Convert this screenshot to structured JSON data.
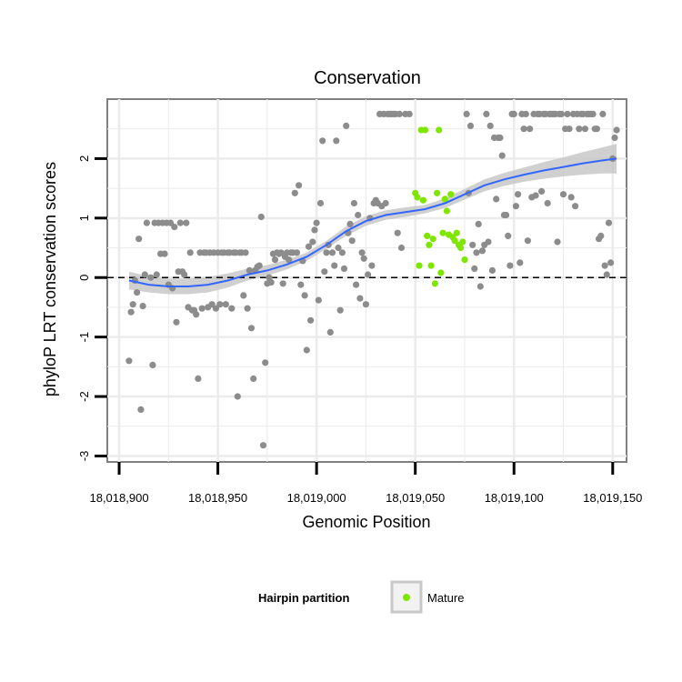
{
  "chart_data": {
    "type": "scatter",
    "title": "Conservation",
    "xlabel": "Genomic Position",
    "ylabel": "phyloP LRT conservation scores",
    "xlim": [
      18018894,
      18019157
    ],
    "ylim": [
      -3.1,
      3.0
    ],
    "x_ticks": [
      {
        "value": 18018900,
        "label": "18,018,900"
      },
      {
        "value": 18018950,
        "label": "18,018,950"
      },
      {
        "value": 18019000,
        "label": "18,019,000"
      },
      {
        "value": 18019050,
        "label": "18,019,050"
      },
      {
        "value": 18019100,
        "label": "18,019,100"
      },
      {
        "value": 18019150,
        "label": "18,019,150"
      }
    ],
    "y_ticks": [
      {
        "value": -3,
        "label": "-3"
      },
      {
        "value": -2,
        "label": "-2"
      },
      {
        "value": -1,
        "label": "-1"
      },
      {
        "value": 0,
        "label": "0"
      },
      {
        "value": 1,
        "label": "1"
      },
      {
        "value": 2,
        "label": "2"
      }
    ],
    "grid": true,
    "reference_line": {
      "y": 0,
      "style": "dashed",
      "color": "#000000"
    },
    "colors": {
      "other_points": "#8c8c8c",
      "mature_points": "#7fe600",
      "smooth_line": "#3366ff",
      "confidence_band": "#c8c8c8",
      "grid": "#ebebeb",
      "panel_border": "#808080"
    },
    "series": [
      {
        "name": "Other",
        "color": "#8c8c8c",
        "points": [
          [
            18018905,
            -1.4
          ],
          [
            18018906,
            -0.58
          ],
          [
            18018907,
            -0.45
          ],
          [
            18018908,
            -0.05
          ],
          [
            18018909,
            -0.25
          ],
          [
            18018910,
            0.65
          ],
          [
            18018911,
            -2.22
          ],
          [
            18018912,
            -0.48
          ],
          [
            18018913,
            0.05
          ],
          [
            18018914,
            0.92
          ],
          [
            18018916,
            0.0
          ],
          [
            18018917,
            -1.47
          ],
          [
            18018918,
            0.92
          ],
          [
            18018919,
            0.05
          ],
          [
            18018920,
            0.92
          ],
          [
            18018921,
            0.4
          ],
          [
            18018922,
            0.92
          ],
          [
            18018923,
            0.4
          ],
          [
            18018924,
            0.92
          ],
          [
            18018925,
            -0.12
          ],
          [
            18018926,
            0.92
          ],
          [
            18018927,
            -0.18
          ],
          [
            18018928,
            0.85
          ],
          [
            18018929,
            -0.75
          ],
          [
            18018930,
            0.1
          ],
          [
            18018931,
            0.92
          ],
          [
            18018932,
            0.1
          ],
          [
            18018933,
            0.05
          ],
          [
            18018934,
            0.92
          ],
          [
            18018935,
            -0.5
          ],
          [
            18018936,
            0.42
          ],
          [
            18018937,
            -0.55
          ],
          [
            18018938,
            -0.55
          ],
          [
            18018939,
            -0.62
          ],
          [
            18018940,
            -1.7
          ],
          [
            18018941,
            0.42
          ],
          [
            18018942,
            -0.52
          ],
          [
            18018943,
            0.42
          ],
          [
            18018944,
            0.42
          ],
          [
            18018945,
            -0.5
          ],
          [
            18018946,
            0.42
          ],
          [
            18018947,
            -0.45
          ],
          [
            18018948,
            0.42
          ],
          [
            18018949,
            -0.52
          ],
          [
            18018950,
            0.42
          ],
          [
            18018951,
            -0.45
          ],
          [
            18018952,
            0.42
          ],
          [
            18018953,
            0.42
          ],
          [
            18018954,
            -0.45
          ],
          [
            18018955,
            0.42
          ],
          [
            18018956,
            0.42
          ],
          [
            18018957,
            -0.52
          ],
          [
            18018958,
            0.42
          ],
          [
            18018959,
            0.42
          ],
          [
            18018960,
            -2.0
          ],
          [
            18018961,
            0.42
          ],
          [
            18018962,
            0.42
          ],
          [
            18018963,
            -0.3
          ],
          [
            18018964,
            0.42
          ],
          [
            18018965,
            -0.52
          ],
          [
            18018966,
            0.12
          ],
          [
            18018967,
            -0.85
          ],
          [
            18018968,
            -1.7
          ],
          [
            18018969,
            0.12
          ],
          [
            18018970,
            0.18
          ],
          [
            18018971,
            0.2
          ],
          [
            18018972,
            1.02
          ],
          [
            18018973,
            -2.82
          ],
          [
            18018974,
            -1.43
          ],
          [
            18018975,
            -0.1
          ],
          [
            18018976,
            0.0
          ],
          [
            18018977,
            -0.08
          ],
          [
            18018978,
            0.4
          ],
          [
            18018979,
            0.3
          ],
          [
            18018980,
            0.42
          ],
          [
            18018981,
            0.4
          ],
          [
            18018982,
            0.42
          ],
          [
            18018983,
            -0.1
          ],
          [
            18018984,
            0.35
          ],
          [
            18018985,
            0.42
          ],
          [
            18018986,
            0.3
          ],
          [
            18018987,
            0.42
          ],
          [
            18018988,
            0.42
          ],
          [
            18018989,
            1.42
          ],
          [
            18018990,
            0.42
          ],
          [
            18018991,
            1.55
          ],
          [
            18018992,
            -0.12
          ],
          [
            18018993,
            0.28
          ],
          [
            18018994,
            -0.3
          ],
          [
            18018995,
            -1.22
          ],
          [
            18018996,
            0.52
          ],
          [
            18018997,
            -0.72
          ],
          [
            18018998,
            0.6
          ],
          [
            18018999,
            0.8
          ],
          [
            18019000,
            0.92
          ],
          [
            18019001,
            -0.38
          ],
          [
            18019002,
            1.25
          ],
          [
            18019003,
            2.3
          ],
          [
            18019004,
            0.1
          ],
          [
            18019005,
            0.42
          ],
          [
            18019006,
            0.55
          ],
          [
            18019007,
            -0.92
          ],
          [
            18019008,
            0.42
          ],
          [
            18019009,
            0.2
          ],
          [
            18019010,
            2.3
          ],
          [
            18019011,
            0.5
          ],
          [
            18019012,
            -0.55
          ],
          [
            18019013,
            0.42
          ],
          [
            18019014,
            0.15
          ],
          [
            18019015,
            2.55
          ],
          [
            18019016,
            0.75
          ],
          [
            18019017,
            0.9
          ],
          [
            18019018,
            0.62
          ],
          [
            18019019,
            1.25
          ],
          [
            18019020,
            -0.12
          ],
          [
            18019021,
            1.05
          ],
          [
            18019022,
            -0.35
          ],
          [
            18019023,
            0.42
          ],
          [
            18019024,
            0.32
          ],
          [
            18019025,
            -0.45
          ],
          [
            18019026,
            0.05
          ],
          [
            18019027,
            1.0
          ],
          [
            18019028,
            0.2
          ],
          [
            18019029,
            1.25
          ],
          [
            18019030,
            1.3
          ],
          [
            18019031,
            1.25
          ],
          [
            18019032,
            2.75
          ],
          [
            18019033,
            1.2
          ],
          [
            18019034,
            2.75
          ],
          [
            18019035,
            1.25
          ],
          [
            18019036,
            2.75
          ],
          [
            18019037,
            2.75
          ],
          [
            18019038,
            2.75
          ],
          [
            18019039,
            2.75
          ],
          [
            18019040,
            2.75
          ],
          [
            18019041,
            0.75
          ],
          [
            18019042,
            2.75
          ],
          [
            18019043,
            0.5
          ],
          [
            18019045,
            2.75
          ],
          [
            18019047,
            2.75
          ],
          [
            18019076,
            2.75
          ],
          [
            18019077,
            1.42
          ],
          [
            18019078,
            2.55
          ],
          [
            18019079,
            0.55
          ],
          [
            18019080,
            0.15
          ],
          [
            18019081,
            0.42
          ],
          [
            18019082,
            0.9
          ],
          [
            18019083,
            -0.15
          ],
          [
            18019084,
            0.45
          ],
          [
            18019085,
            0.55
          ],
          [
            18019086,
            2.75
          ],
          [
            18019087,
            0.6
          ],
          [
            18019088,
            2.55
          ],
          [
            18019089,
            0.12
          ],
          [
            18019090,
            2.35
          ],
          [
            18019091,
            1.32
          ],
          [
            18019092,
            2.35
          ],
          [
            18019093,
            2.35
          ],
          [
            18019094,
            2.05
          ],
          [
            18019095,
            1.05
          ],
          [
            18019096,
            1.05
          ],
          [
            18019097,
            0.7
          ],
          [
            18019098,
            0.2
          ],
          [
            18019099,
            2.75
          ],
          [
            18019100,
            2.75
          ],
          [
            18019101,
            1.2
          ],
          [
            18019102,
            1.4
          ],
          [
            18019103,
            0.25
          ],
          [
            18019104,
            2.75
          ],
          [
            18019105,
            2.5
          ],
          [
            18019106,
            2.75
          ],
          [
            18019107,
            0.62
          ],
          [
            18019108,
            2.5
          ],
          [
            18019109,
            1.35
          ],
          [
            18019110,
            2.75
          ],
          [
            18019111,
            1.38
          ],
          [
            18019112,
            2.75
          ],
          [
            18019113,
            2.75
          ],
          [
            18019114,
            1.45
          ],
          [
            18019115,
            2.75
          ],
          [
            18019116,
            2.75
          ],
          [
            18019117,
            1.25
          ],
          [
            18019118,
            2.75
          ],
          [
            18019119,
            2.75
          ],
          [
            18019120,
            2.75
          ],
          [
            18019121,
            2.75
          ],
          [
            18019122,
            0.6
          ],
          [
            18019123,
            2.75
          ],
          [
            18019124,
            2.75
          ],
          [
            18019125,
            1.4
          ],
          [
            18019126,
            2.5
          ],
          [
            18019127,
            2.75
          ],
          [
            18019128,
            2.5
          ],
          [
            18019129,
            1.35
          ],
          [
            18019130,
            2.75
          ],
          [
            18019131,
            1.2
          ],
          [
            18019132,
            2.75
          ],
          [
            18019133,
            2.5
          ],
          [
            18019134,
            2.75
          ],
          [
            18019135,
            2.75
          ],
          [
            18019136,
            2.5
          ],
          [
            18019137,
            2.75
          ],
          [
            18019138,
            2.75
          ],
          [
            18019139,
            2.75
          ],
          [
            18019140,
            2.75
          ],
          [
            18019141,
            2.5
          ],
          [
            18019142,
            2.5
          ],
          [
            18019143,
            0.65
          ],
          [
            18019144,
            0.7
          ],
          [
            18019145,
            2.75
          ],
          [
            18019146,
            0.2
          ],
          [
            18019147,
            0.05
          ],
          [
            18019148,
            0.92
          ],
          [
            18019149,
            0.25
          ],
          [
            18019150,
            2.0
          ],
          [
            18019151,
            2.35
          ],
          [
            18019152,
            2.48
          ]
        ]
      },
      {
        "name": "Mature",
        "color": "#7fe600",
        "points": [
          [
            18019050,
            1.42
          ],
          [
            18019051,
            1.35
          ],
          [
            18019052,
            0.2
          ],
          [
            18019053,
            2.48
          ],
          [
            18019054,
            1.3
          ],
          [
            18019055,
            2.48
          ],
          [
            18019056,
            0.7
          ],
          [
            18019057,
            0.55
          ],
          [
            18019058,
            0.2
          ],
          [
            18019059,
            0.65
          ],
          [
            18019060,
            -0.1
          ],
          [
            18019061,
            1.42
          ],
          [
            18019062,
            2.48
          ],
          [
            18019063,
            0.08
          ],
          [
            18019064,
            0.75
          ],
          [
            18019065,
            1.32
          ],
          [
            18019066,
            1.12
          ],
          [
            18019067,
            0.72
          ],
          [
            18019068,
            1.4
          ],
          [
            18019069,
            0.68
          ],
          [
            18019070,
            0.62
          ],
          [
            18019071,
            0.75
          ],
          [
            18019072,
            0.55
          ],
          [
            18019073,
            0.5
          ],
          [
            18019074,
            0.6
          ],
          [
            18019075,
            0.3
          ]
        ]
      }
    ],
    "smooth": {
      "name": "loess fit",
      "x": [
        18018905,
        18018915,
        18018925,
        18018935,
        18018945,
        18018955,
        18018965,
        18018975,
        18018985,
        18018995,
        18019005,
        18019015,
        18019025,
        18019035,
        18019045,
        18019055,
        18019065,
        18019075,
        18019085,
        18019095,
        18019105,
        18019115,
        18019125,
        18019135,
        18019145,
        18019152
      ],
      "y": [
        -0.05,
        -0.12,
        -0.15,
        -0.15,
        -0.12,
        -0.05,
        0.05,
        0.12,
        0.22,
        0.35,
        0.55,
        0.78,
        0.95,
        1.05,
        1.1,
        1.15,
        1.25,
        1.4,
        1.55,
        1.65,
        1.73,
        1.8,
        1.86,
        1.92,
        1.97,
        2.0
      ],
      "lower": [
        -0.2,
        -0.25,
        -0.28,
        -0.28,
        -0.25,
        -0.17,
        -0.05,
        0.03,
        0.14,
        0.28,
        0.48,
        0.7,
        0.87,
        0.97,
        1.02,
        1.08,
        1.17,
        1.31,
        1.45,
        1.54,
        1.61,
        1.66,
        1.7,
        1.73,
        1.75,
        1.75
      ],
      "upper": [
        0.1,
        0.02,
        -0.02,
        -0.02,
        0.01,
        0.07,
        0.15,
        0.21,
        0.3,
        0.42,
        0.62,
        0.86,
        1.03,
        1.13,
        1.18,
        1.22,
        1.33,
        1.49,
        1.65,
        1.76,
        1.85,
        1.94,
        2.02,
        2.11,
        2.19,
        2.25
      ]
    },
    "legend": {
      "title": "Hairpin partition",
      "entries": [
        {
          "label": "Mature",
          "color": "#7fe600"
        }
      ],
      "position": "bottom"
    }
  }
}
